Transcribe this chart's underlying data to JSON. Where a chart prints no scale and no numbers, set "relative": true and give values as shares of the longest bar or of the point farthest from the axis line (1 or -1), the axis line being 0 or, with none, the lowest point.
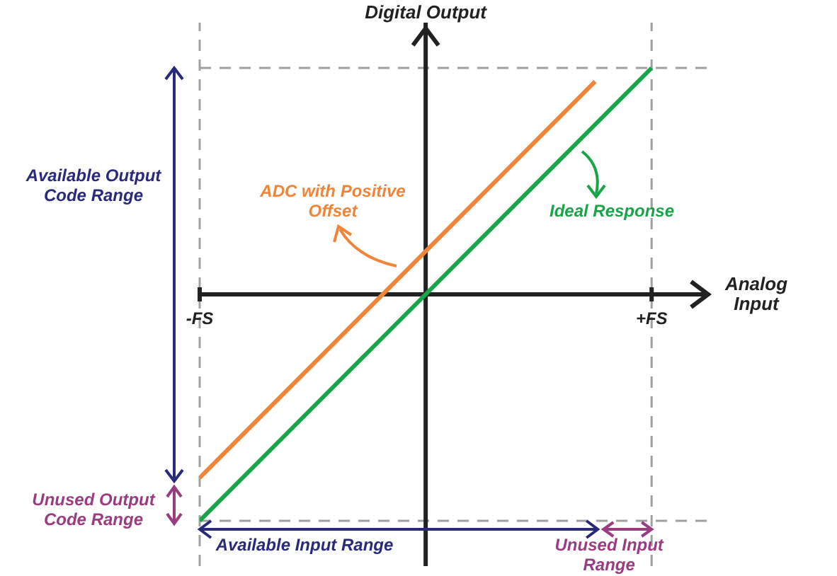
{
  "chart_data": {
    "type": "line",
    "relative": true,
    "xlabel": "Analog Input",
    "ylabel": "Digital Output",
    "categories": [
      "-FS",
      null,
      null,
      null,
      null,
      null,
      null,
      null,
      "+FS",
      null
    ],
    "series": [
      {
        "name": "ADC with Positive Offset",
        "color": "#f0853a",
        "values": [
          -0.81,
          -0.56,
          -0.31,
          -0.06,
          0.19,
          0.44,
          0.69,
          0.94,
          null,
          null
        ]
      },
      {
        "name": "Ideal Response",
        "color": "#18a54a",
        "values": [
          -1,
          -0.75,
          -0.5,
          -0.25,
          0,
          0.25,
          0.5,
          0.75,
          1,
          null
        ]
      }
    ],
    "ref_lines": [
      {
        "axis": "x",
        "value": "-FS",
        "color": "#a0a0a0",
        "line_style": "dashed"
      },
      {
        "axis": "x",
        "value": "+FS",
        "color": "#a0a0a0",
        "line_style": "dashed"
      },
      {
        "axis": "y",
        "value": 1,
        "color": "#a0a0a0",
        "line_style": "dashed"
      },
      {
        "axis": "y",
        "value": -1,
        "color": "#a0a0a0",
        "line_style": "dashed"
      }
    ],
    "annotations": [
      "Available Output Code Range",
      "Unused Output Code Range",
      "Available Input Range",
      "Unused Input Range"
    ],
    "marker": "none",
    "line_style": "solid"
  }
}
